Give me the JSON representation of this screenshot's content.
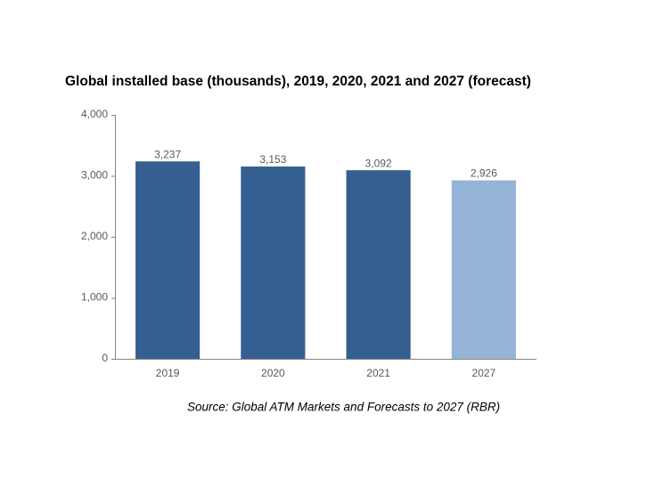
{
  "chart_data": {
    "type": "bar",
    "title": "Global installed base (thousands), 2019, 2020, 2021 and 2027 (forecast)",
    "categories": [
      "2019",
      "2020",
      "2021",
      "2027"
    ],
    "values": [
      3237,
      3153,
      3092,
      2926
    ],
    "value_labels": [
      "3,237",
      "3,153",
      "3,092",
      "2,926"
    ],
    "colors": [
      "#365f91",
      "#365f91",
      "#365f91",
      "#95b3d7"
    ],
    "ylim": [
      0,
      4000
    ],
    "yticks": [
      0,
      {
        "value": 1000,
        "label": "1,000"
      },
      {
        "value": 2000,
        "label": "2,000"
      },
      {
        "value": 3000,
        "label": "3,000"
      },
      {
        "value": 4000,
        "label": "4,000"
      }
    ],
    "grid": false,
    "source": "Source: Global ATM Markets and Forecasts to 2027 (RBR)"
  }
}
